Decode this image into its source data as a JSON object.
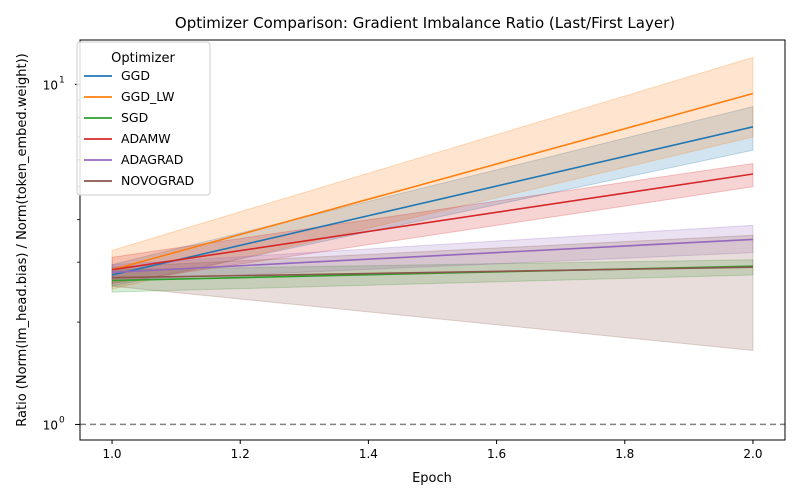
{
  "chart_data": {
    "type": "line",
    "title": "Optimizer Comparison: Gradient Imbalance Ratio (Last/First Layer)",
    "xlabel": "Epoch",
    "ylabel": "Ratio (Norm(lm_head.bias) / Norm(token_embed.weight))",
    "y_scale": "log",
    "xlim": [
      0.95,
      2.05
    ],
    "ylim": [
      0.9,
      13.5
    ],
    "x_ticks": [
      1.0,
      1.2,
      1.4,
      1.6,
      1.8,
      2.0
    ],
    "x_tick_labels": [
      "1.0",
      "1.2",
      "1.4",
      "1.6",
      "1.8",
      "2.0"
    ],
    "y_major_ticks": [
      1,
      10
    ],
    "y_major_tick_label_bases": [
      "10",
      "10"
    ],
    "y_major_tick_label_exponents": [
      "0",
      "1"
    ],
    "y_minor_ticks": [
      2,
      3,
      4,
      5,
      6,
      7,
      8,
      9
    ],
    "reference_line": {
      "y": 1.0,
      "style": "dashed",
      "color": "#808080"
    },
    "legend": {
      "title": "Optimizer",
      "placement": "top-left"
    },
    "x": [
      1.0,
      2.0
    ],
    "series": [
      {
        "name": "GGD",
        "color": "#1f77b4",
        "values": [
          2.75,
          7.5
        ],
        "lower": [
          2.55,
          6.4
        ],
        "upper": [
          2.95,
          8.6
        ]
      },
      {
        "name": "GGD_LW",
        "color": "#ff7f0e",
        "values": [
          2.85,
          9.4
        ],
        "lower": [
          2.5,
          7.0
        ],
        "upper": [
          3.25,
          12.0
        ]
      },
      {
        "name": "SGD",
        "color": "#2ca02c",
        "values": [
          2.65,
          2.92
        ],
        "lower": [
          2.45,
          2.75
        ],
        "upper": [
          2.85,
          3.05
        ]
      },
      {
        "name": "ADAMW",
        "color": "#d62728",
        "values": [
          2.85,
          5.45
        ],
        "lower": [
          2.6,
          5.0
        ],
        "upper": [
          3.1,
          5.85
        ]
      },
      {
        "name": "ADAGRAD",
        "color": "#9467bd",
        "values": [
          2.8,
          3.5
        ],
        "lower": [
          2.65,
          3.2
        ],
        "upper": [
          2.95,
          3.85
        ]
      },
      {
        "name": "NOVOGRAD",
        "color": "#8c564b",
        "values": [
          2.7,
          2.9
        ],
        "lower": [
          2.55,
          1.65
        ],
        "upper": [
          2.9,
          3.6
        ]
      }
    ]
  }
}
